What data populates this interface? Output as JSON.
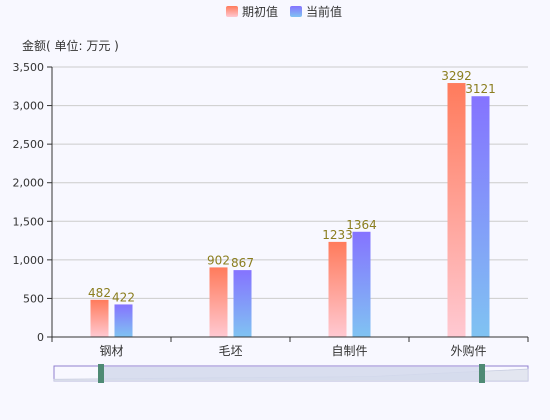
{
  "chart_data": {
    "type": "bar",
    "title": "",
    "xlabel": "",
    "ylabel": "金额( 单位: 万元 )",
    "categories": [
      "钢材",
      "毛坯",
      "自制件",
      "外购件"
    ],
    "series": [
      {
        "name": "期初值",
        "values": [
          482,
          902,
          1233,
          3292
        ],
        "color_top": "#ff7b5c",
        "color_bottom": "#ffc9d2"
      },
      {
        "name": "当前值",
        "values": [
          422,
          867,
          1364,
          3121
        ],
        "color_top": "#8573ff",
        "color_bottom": "#80c3f2"
      }
    ],
    "ylim": [
      0,
      3500
    ],
    "yticks": [
      0,
      500,
      1000,
      1500,
      2000,
      2500,
      3000,
      3500
    ],
    "ytick_labels": [
      "0",
      "500",
      "1,000",
      "1,500",
      "2,000",
      "2,500",
      "3,000",
      "3,500"
    ],
    "grid": true,
    "legend_position": "top-center",
    "data_labels": true,
    "datazoom": {
      "start_percent": 0,
      "end_percent": 100
    }
  },
  "colors": {
    "grid": "#cccccc",
    "axis": "#333333",
    "data_label": "#8b7e1f",
    "zoom_border": "#8f7fcf",
    "zoom_fill": "#d3d9ec",
    "zoom_handle": "#4e8a74"
  }
}
